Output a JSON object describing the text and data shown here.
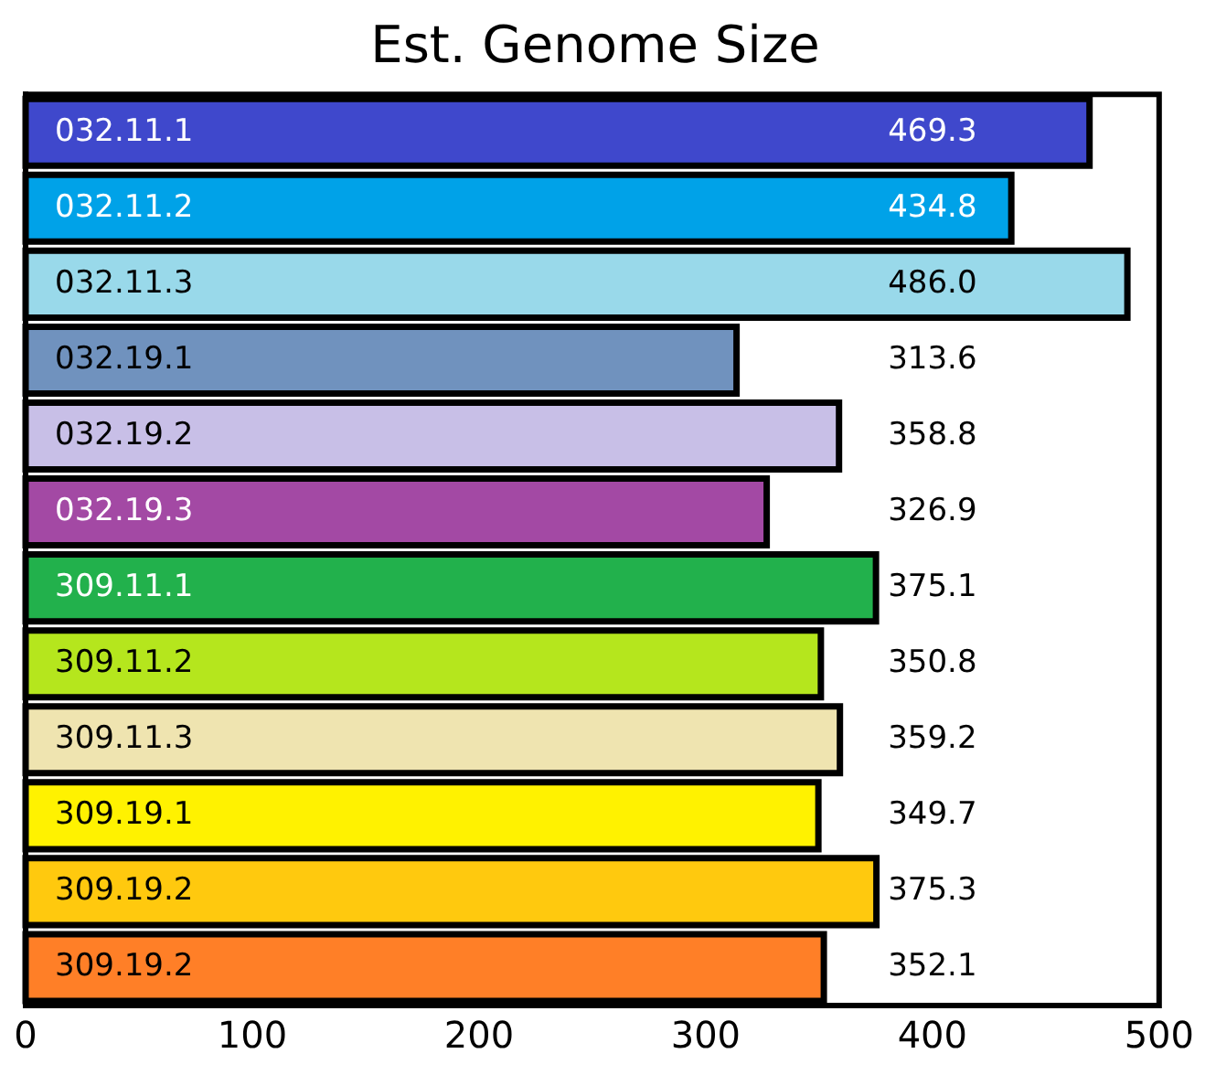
{
  "chart_data": {
    "type": "bar",
    "orientation": "horizontal",
    "title": "Est. Genome Size",
    "categories": [
      "032.11.1",
      "032.11.2",
      "032.11.3",
      "032.19.1",
      "032.19.2",
      "032.19.3",
      "309.11.1",
      "309.11.2",
      "309.11.3",
      "309.19.1",
      "309.19.2",
      "309.19.2"
    ],
    "values": [
      469.3,
      434.8,
      486.0,
      313.6,
      358.8,
      326.9,
      375.1,
      350.8,
      359.2,
      349.7,
      375.3,
      352.1
    ],
    "colors": [
      "#3f48cc",
      "#00a2e8",
      "#99d9ea",
      "#7092be",
      "#c8bfe7",
      "#a349a4",
      "#22b14c",
      "#b5e61d",
      "#efe4b0",
      "#fff200",
      "#ffc90e",
      "#ff7f27"
    ],
    "value_labels": [
      "469.3",
      "434.8",
      "486.0",
      "313.6",
      "358.8",
      "326.9",
      "375.1",
      "350.8",
      "359.2",
      "349.7",
      "375.3",
      "352.1"
    ],
    "xlim": [
      0,
      500
    ],
    "xticks": [
      0,
      100,
      200,
      300,
      400,
      500
    ],
    "grid": false,
    "legend": false
  }
}
